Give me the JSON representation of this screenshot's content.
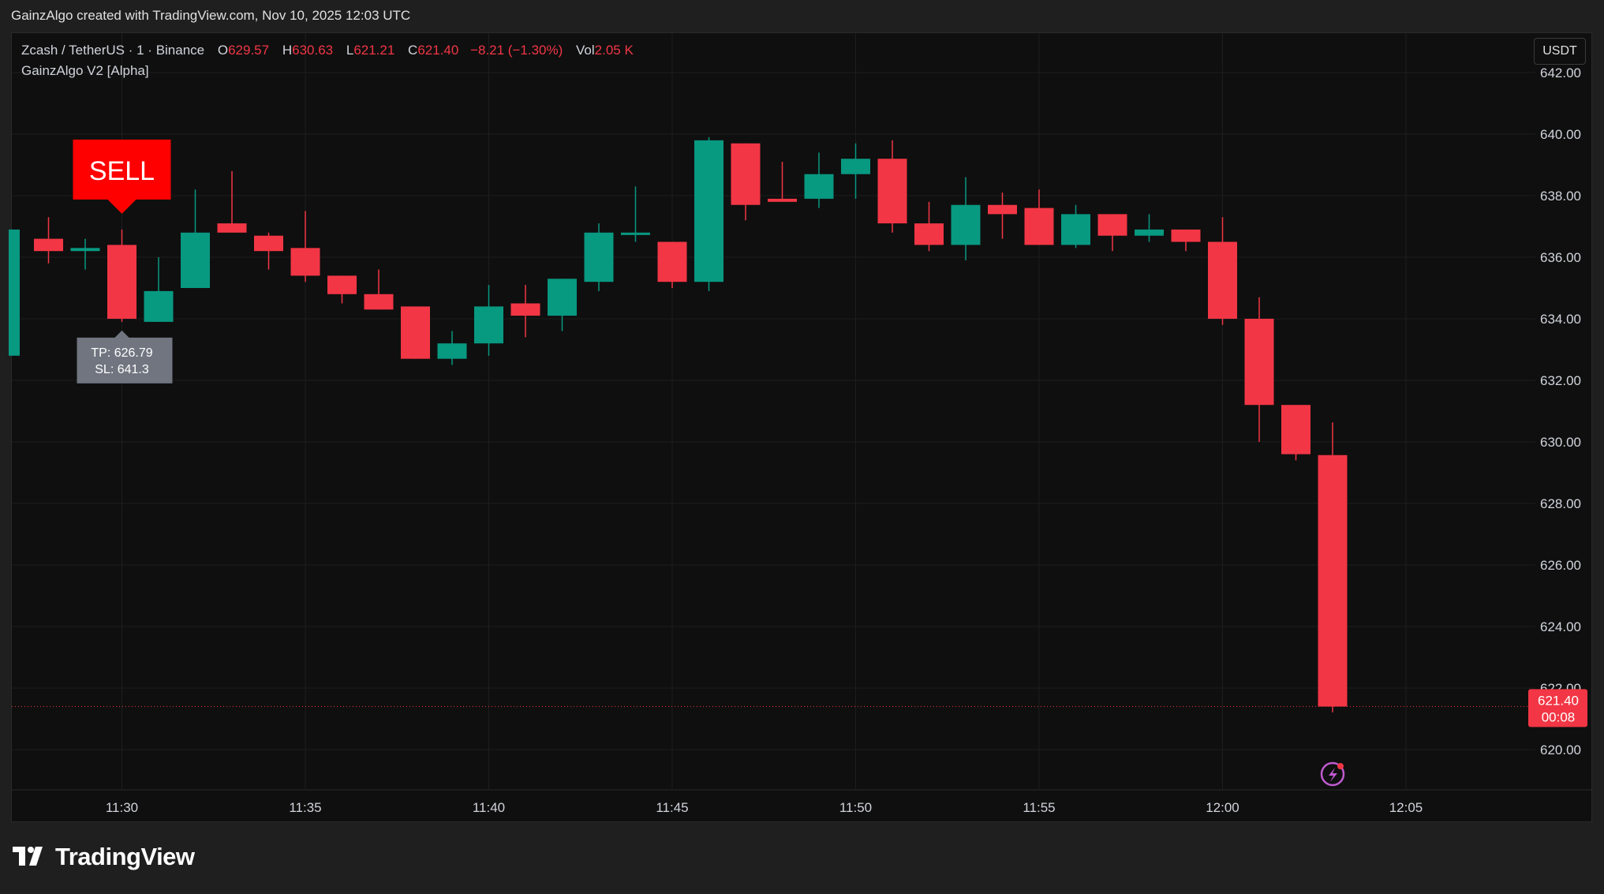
{
  "header": {
    "snapshot_text": "GainzAlgo created with TradingView.com, Nov 10, 2025 12:03 UTC"
  },
  "legend": {
    "symbol": "Zcash / TetherUS · 1 · Binance",
    "open_label": "O",
    "open_value": "629.57",
    "high_label": "H",
    "high_value": "630.63",
    "low_label": "L",
    "low_value": "621.21",
    "close_label": "C",
    "close_value": "621.40",
    "change": "−8.21 (−1.30%)",
    "vol_label": "Vol",
    "vol_value": "2.05 K",
    "indicator": "GainzAlgo V2 [Alpha]"
  },
  "currency": "USDT",
  "signal": {
    "label": "SELL",
    "tp_text": "TP: 626.79",
    "sl_text": "SL: 641.3",
    "candle_time": "11:30"
  },
  "price_tag": {
    "price": "621.40",
    "countdown": "00:08"
  },
  "brand": "TradingView",
  "colors": {
    "up": "#089981",
    "down": "#f23645",
    "grid": "#1e1e1e",
    "sell": "#ff0000",
    "tooltip": "#707580"
  },
  "chart_data": {
    "type": "candlestick",
    "x_unit": "time (UTC)",
    "ylim": [
      619.0,
      642.0
    ],
    "y_ticks": [
      "620.00",
      "622.00",
      "624.00",
      "626.00",
      "628.00",
      "630.00",
      "632.00",
      "634.00",
      "636.00",
      "638.00",
      "640.00",
      "642.00"
    ],
    "x_ticks": [
      "11:30",
      "11:35",
      "11:40",
      "11:45",
      "11:50",
      "11:55",
      "12:00",
      "12:05"
    ],
    "current_price": 621.4,
    "candles": [
      {
        "t": "11:27",
        "o": 632.8,
        "h": 636.9,
        "l": 632.8,
        "c": 636.9
      },
      {
        "t": "11:28",
        "o": 636.6,
        "h": 637.3,
        "l": 635.8,
        "c": 636.2
      },
      {
        "t": "11:29",
        "o": 636.2,
        "h": 636.6,
        "l": 635.6,
        "c": 636.3
      },
      {
        "t": "11:30",
        "o": 636.4,
        "h": 636.9,
        "l": 633.9,
        "c": 634.0
      },
      {
        "t": "11:31",
        "o": 633.9,
        "h": 636.0,
        "l": 633.9,
        "c": 634.9
      },
      {
        "t": "11:32",
        "o": 635.0,
        "h": 638.2,
        "l": 635.0,
        "c": 636.8
      },
      {
        "t": "11:33",
        "o": 637.1,
        "h": 638.8,
        "l": 636.8,
        "c": 636.8
      },
      {
        "t": "11:34",
        "o": 636.7,
        "h": 636.8,
        "l": 635.6,
        "c": 636.2
      },
      {
        "t": "11:35",
        "o": 636.3,
        "h": 637.5,
        "l": 635.2,
        "c": 635.4
      },
      {
        "t": "11:36",
        "o": 635.4,
        "h": 635.4,
        "l": 634.5,
        "c": 634.8
      },
      {
        "t": "11:37",
        "o": 634.8,
        "h": 635.6,
        "l": 634.3,
        "c": 634.3
      },
      {
        "t": "11:38",
        "o": 634.4,
        "h": 634.4,
        "l": 632.7,
        "c": 632.7
      },
      {
        "t": "11:39",
        "o": 632.7,
        "h": 633.6,
        "l": 632.5,
        "c": 633.2
      },
      {
        "t": "11:40",
        "o": 633.2,
        "h": 635.1,
        "l": 632.8,
        "c": 634.4
      },
      {
        "t": "11:41",
        "o": 634.5,
        "h": 635.1,
        "l": 633.4,
        "c": 634.1
      },
      {
        "t": "11:42",
        "o": 634.1,
        "h": 635.3,
        "l": 633.6,
        "c": 635.3
      },
      {
        "t": "11:43",
        "o": 635.2,
        "h": 637.1,
        "l": 634.9,
        "c": 636.8
      },
      {
        "t": "11:44",
        "o": 636.8,
        "h": 638.3,
        "l": 636.5,
        "c": 636.8
      },
      {
        "t": "11:45",
        "o": 636.5,
        "h": 636.5,
        "l": 635.0,
        "c": 635.2
      },
      {
        "t": "11:46",
        "o": 635.2,
        "h": 639.9,
        "l": 634.9,
        "c": 639.8
      },
      {
        "t": "11:47",
        "o": 639.7,
        "h": 639.7,
        "l": 637.2,
        "c": 637.7
      },
      {
        "t": "11:48",
        "o": 637.9,
        "h": 639.1,
        "l": 637.8,
        "c": 637.8
      },
      {
        "t": "11:49",
        "o": 637.9,
        "h": 639.4,
        "l": 637.6,
        "c": 638.7
      },
      {
        "t": "11:50",
        "o": 638.7,
        "h": 639.7,
        "l": 637.9,
        "c": 639.2
      },
      {
        "t": "11:51",
        "o": 639.2,
        "h": 639.8,
        "l": 636.8,
        "c": 637.1
      },
      {
        "t": "11:52",
        "o": 637.1,
        "h": 637.8,
        "l": 636.2,
        "c": 636.4
      },
      {
        "t": "11:53",
        "o": 636.4,
        "h": 638.6,
        "l": 635.9,
        "c": 637.7
      },
      {
        "t": "11:54",
        "o": 637.7,
        "h": 638.1,
        "l": 636.6,
        "c": 637.4
      },
      {
        "t": "11:55",
        "o": 637.6,
        "h": 638.2,
        "l": 636.4,
        "c": 636.4
      },
      {
        "t": "11:56",
        "o": 636.4,
        "h": 637.7,
        "l": 636.3,
        "c": 637.4
      },
      {
        "t": "11:57",
        "o": 637.4,
        "h": 637.4,
        "l": 636.2,
        "c": 636.7
      },
      {
        "t": "11:58",
        "o": 636.7,
        "h": 637.4,
        "l": 636.5,
        "c": 636.9
      },
      {
        "t": "11:59",
        "o": 636.9,
        "h": 636.9,
        "l": 636.2,
        "c": 636.5
      },
      {
        "t": "12:00",
        "o": 636.5,
        "h": 637.3,
        "l": 633.8,
        "c": 634.0
      },
      {
        "t": "12:01",
        "o": 634.0,
        "h": 634.7,
        "l": 630.0,
        "c": 631.2
      },
      {
        "t": "12:02",
        "o": 631.2,
        "h": 631.2,
        "l": 629.4,
        "c": 629.6
      },
      {
        "t": "12:03",
        "o": 629.57,
        "h": 630.63,
        "l": 621.21,
        "c": 621.4
      }
    ]
  }
}
